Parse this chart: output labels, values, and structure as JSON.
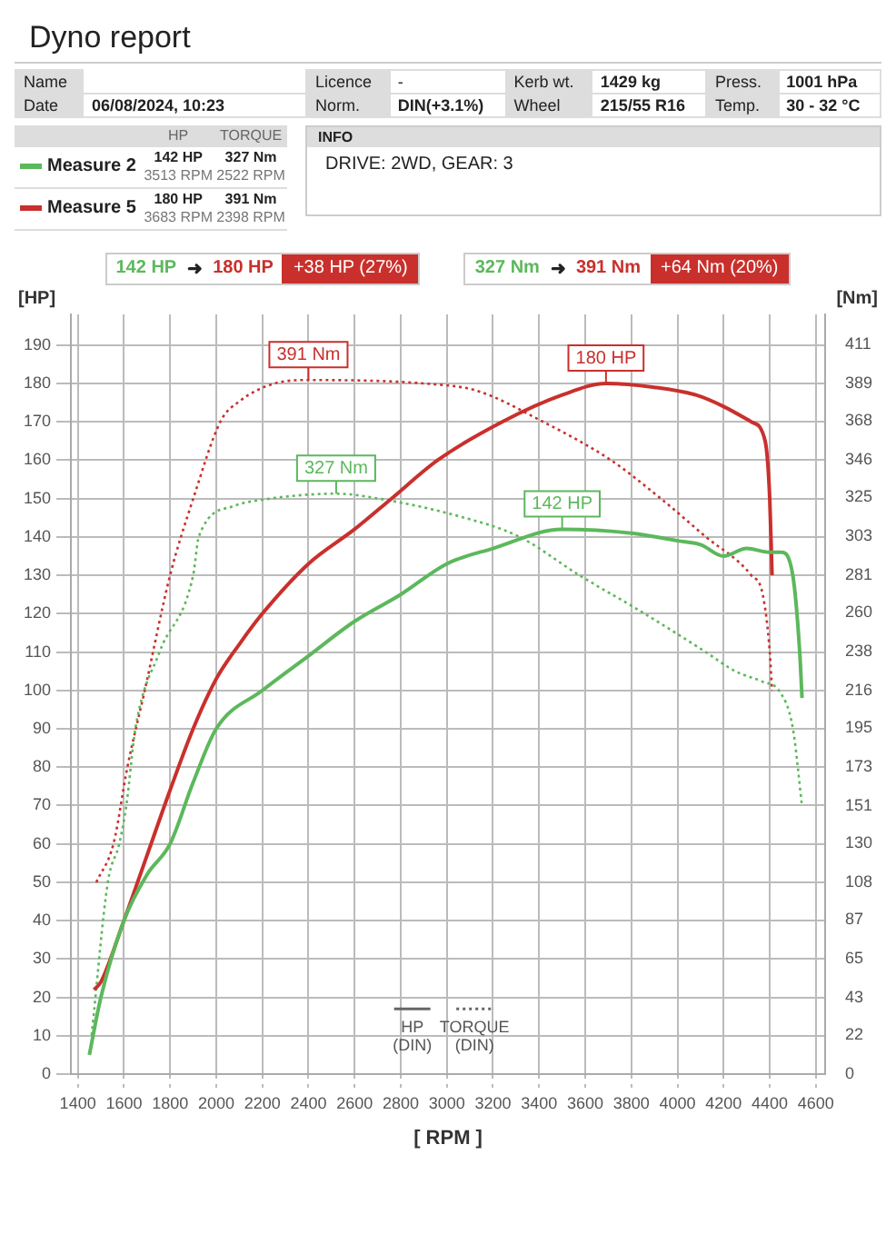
{
  "chart_data": {
    "type": "line",
    "title": "Dyno report",
    "xlabel": "[ RPM ]",
    "ylabel": "[HP]",
    "y2label": "[Nm]",
    "annotations": [
      "Name",
      "Licence",
      "-",
      "Kerb wt.",
      "1429 kg",
      "Press.",
      "1001 hPa",
      "Date",
      "06/08/2024, 10:23",
      "Norm.",
      "DIN(+3.1%)",
      "Wheel",
      "215/55 R16",
      "Temp.",
      "30 - 32 °C",
      "HP",
      "TORQUE",
      "142 HP",
      "3513 RPM",
      "327 Nm",
      "2522 RPM",
      "180 HP",
      "3683 RPM",
      "391 Nm",
      "2398 RPM",
      "INFO",
      "DRIVE: 2WD,  GEAR: 3",
      "142 HP",
      "180 HP",
      "+38 HP  (27%)",
      "327 Nm",
      "391 Nm",
      "+64 Nm  (20%)",
      "HP\n(DIN)",
      "TORQUE\n(DIN)",
      "➜"
    ],
    "xlim": [
      1370,
      4640
    ],
    "xticks": [
      1400,
      1600,
      1800,
      2000,
      2200,
      2400,
      2600,
      2800,
      3000,
      3200,
      3400,
      3600,
      3800,
      4000,
      4200,
      4400,
      4600
    ],
    "ylim": [
      0,
      198
    ],
    "yticks": [
      0,
      10,
      20,
      30,
      40,
      50,
      60,
      70,
      80,
      90,
      100,
      110,
      120,
      130,
      140,
      150,
      160,
      170,
      180,
      190
    ],
    "y2lim": [
      0,
      428
    ],
    "y2ticks": [
      0,
      22,
      43,
      65,
      87,
      108,
      130,
      151,
      173,
      195,
      216,
      238,
      260,
      281,
      303,
      325,
      346,
      368,
      389,
      411
    ],
    "grid": true,
    "legend": "top left",
    "marker": "none",
    "series": [
      {
        "name": "Measure 2",
        "color": "#5cb85c",
        "line_style": "solid",
        "x": [
          1450,
          1500,
          1600,
          1700,
          1800,
          1900,
          2000,
          2200,
          2400,
          2600,
          2800,
          3000,
          3200,
          3500,
          3800,
          4000,
          4100,
          4200,
          4300,
          4400,
          4450,
          4500,
          4530,
          4540
        ],
        "values": [
          5,
          20,
          40,
          52,
          60,
          76,
          90,
          100,
          109,
          118,
          125,
          133,
          137,
          142,
          141,
          139,
          138,
          135,
          137,
          136,
          136,
          130,
          110,
          98
        ],
        "value_labels": [
          null,
          null,
          null,
          null,
          null,
          null,
          null,
          null,
          null,
          null,
          null,
          null,
          null,
          "142 HP",
          null,
          null,
          null,
          null,
          null,
          null,
          null,
          null,
          null,
          null
        ]
      },
      {
        "name": "Measure 5",
        "color": "#c9302c",
        "line_style": "solid",
        "x": [
          1470,
          1500,
          1600,
          1700,
          1800,
          1900,
          2000,
          2100,
          2200,
          2400,
          2600,
          2760,
          2960,
          3240,
          3500,
          3690,
          3900,
          4080,
          4200,
          4320,
          4380,
          4400,
          4410
        ],
        "values": [
          22,
          24,
          40,
          57,
          74,
          90,
          103,
          112,
          120,
          133,
          142,
          150,
          160,
          170,
          177,
          180,
          179,
          177,
          174,
          170,
          165,
          150,
          130
        ],
        "value_labels": [
          null,
          null,
          null,
          null,
          null,
          null,
          null,
          null,
          null,
          null,
          null,
          null,
          null,
          null,
          null,
          "180 HP",
          null,
          null,
          null,
          null,
          null,
          null,
          null
        ]
      },
      {
        "color": "#5cb85c",
        "axis": "y2",
        "line_style": "dotted",
        "x": [
          1460,
          1530,
          1580,
          1610,
          1650,
          1755,
          1900,
          1925,
          2075,
          2220,
          2520,
          2715,
          3060,
          3310,
          3575,
          3850,
          4120,
          4250,
          4370,
          4440,
          4500,
          4540
        ],
        "values": [
          22,
          108,
          130,
          151,
          195,
          238,
          281,
          303,
          320,
          324,
          327,
          324,
          314,
          303,
          281,
          260,
          238,
          227,
          221,
          216,
          195,
          151
        ],
        "value_labels": [
          null,
          null,
          null,
          null,
          null,
          null,
          null,
          null,
          null,
          null,
          "327 Nm",
          null,
          null,
          null,
          null,
          null,
          null,
          null,
          null,
          null,
          null,
          null
        ]
      },
      {
        "color": "#c9302c",
        "axis": "y2",
        "line_style": "dotted",
        "x": [
          1480,
          1555,
          1615,
          1690,
          1800,
          1900,
          2020,
          2100,
          2250,
          2400,
          2910,
          3130,
          3410,
          3710,
          3930,
          4120,
          4320,
          4370,
          4400,
          4410
        ],
        "values": [
          108,
          130,
          173,
          216,
          281,
          324,
          368,
          379,
          389,
          391,
          389,
          385,
          368,
          346,
          324,
          303,
          281,
          270,
          238,
          216
        ],
        "value_labels": [
          null,
          null,
          null,
          null,
          null,
          null,
          null,
          null,
          null,
          "391 Nm",
          null,
          null,
          null,
          null,
          null,
          null,
          null,
          null,
          null,
          null
        ]
      }
    ]
  }
}
